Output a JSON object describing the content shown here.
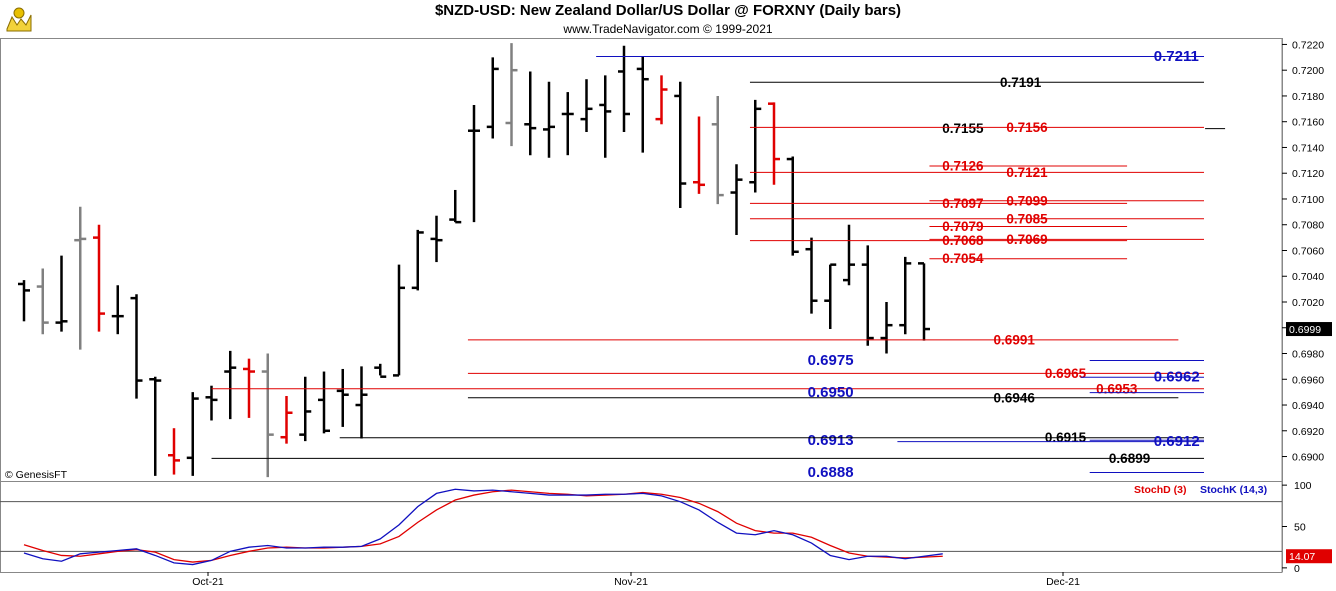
{
  "header": {
    "title": "$NZD-USD:  New Zealand Dollar/US Dollar @ FORXNY  (Daily bars)",
    "subtitle": "www.TradeNavigator.com © 1999-2021",
    "logo_icon": "trade-navigator-logo-icon"
  },
  "chart_data": [
    {
      "type": "ohlc",
      "ylim": [
        0.6881,
        0.7225
      ],
      "y_ticks": [
        "0.7220",
        "0.7200",
        "0.7180",
        "0.7160",
        "0.7140",
        "0.7120",
        "0.7100",
        "0.7080",
        "0.7060",
        "0.7040",
        "0.7020",
        "0.7000",
        "0.6980",
        "0.6960",
        "0.6940",
        "0.6920",
        "0.6900"
      ],
      "x_tick_labels": [
        "Oct-21",
        "Nov-21",
        "Dec-21"
      ],
      "last_price": "0.6999",
      "watermark": "© GenesisFT",
      "bars": [
        {
          "o": 0.7034,
          "h": 0.7037,
          "l": 0.7005,
          "c": 0.7029,
          "color": "black"
        },
        {
          "o": 0.7032,
          "h": 0.7046,
          "l": 0.6995,
          "c": 0.7004,
          "color": "gray"
        },
        {
          "o": 0.7004,
          "h": 0.7056,
          "l": 0.6997,
          "c": 0.7005,
          "color": "black"
        },
        {
          "o": 0.7068,
          "h": 0.7094,
          "l": 0.6983,
          "c": 0.7069,
          "color": "gray"
        },
        {
          "o": 0.707,
          "h": 0.708,
          "l": 0.6997,
          "c": 0.7011,
          "color": "red"
        },
        {
          "o": 0.7009,
          "h": 0.7033,
          "l": 0.6995,
          "c": 0.7009,
          "color": "black"
        },
        {
          "o": 0.7023,
          "h": 0.7026,
          "l": 0.6945,
          "c": 0.6959,
          "color": "black"
        },
        {
          "o": 0.696,
          "h": 0.6962,
          "l": 0.6885,
          "c": 0.6959,
          "color": "black"
        },
        {
          "o": 0.6901,
          "h": 0.6922,
          "l": 0.6886,
          "c": 0.6897,
          "color": "red"
        },
        {
          "o": 0.6899,
          "h": 0.695,
          "l": 0.6885,
          "c": 0.6945,
          "color": "black"
        },
        {
          "o": 0.6946,
          "h": 0.6955,
          "l": 0.6928,
          "c": 0.6944,
          "color": "black"
        },
        {
          "o": 0.6966,
          "h": 0.6982,
          "l": 0.6929,
          "c": 0.6969,
          "color": "black"
        },
        {
          "o": 0.6968,
          "h": 0.6976,
          "l": 0.693,
          "c": 0.6966,
          "color": "red"
        },
        {
          "o": 0.6966,
          "h": 0.698,
          "l": 0.6884,
          "c": 0.6917,
          "color": "gray"
        },
        {
          "o": 0.6915,
          "h": 0.6947,
          "l": 0.691,
          "c": 0.6934,
          "color": "red"
        },
        {
          "o": 0.6917,
          "h": 0.6962,
          "l": 0.6912,
          "c": 0.6935,
          "color": "black"
        },
        {
          "o": 0.6944,
          "h": 0.6966,
          "l": 0.6918,
          "c": 0.692,
          "color": "black"
        },
        {
          "o": 0.6951,
          "h": 0.6968,
          "l": 0.6923,
          "c": 0.6948,
          "color": "black"
        },
        {
          "o": 0.694,
          "h": 0.697,
          "l": 0.6914,
          "c": 0.6948,
          "color": "black"
        },
        {
          "o": 0.6969,
          "h": 0.6972,
          "l": 0.6963,
          "c": 0.6962,
          "color": "black"
        },
        {
          "o": 0.6963,
          "h": 0.7049,
          "l": 0.6963,
          "c": 0.7031,
          "color": "black"
        },
        {
          "o": 0.7031,
          "h": 0.7076,
          "l": 0.7029,
          "c": 0.7074,
          "color": "black"
        },
        {
          "o": 0.7069,
          "h": 0.7087,
          "l": 0.7051,
          "c": 0.7068,
          "color": "black"
        },
        {
          "o": 0.7084,
          "h": 0.7107,
          "l": 0.7082,
          "c": 0.7082,
          "color": "black"
        },
        {
          "o": 0.7153,
          "h": 0.7173,
          "l": 0.7082,
          "c": 0.7153,
          "color": "black"
        },
        {
          "o": 0.7156,
          "h": 0.721,
          "l": 0.7147,
          "c": 0.7201,
          "color": "black"
        },
        {
          "o": 0.7159,
          "h": 0.7221,
          "l": 0.7141,
          "c": 0.72,
          "color": "gray"
        },
        {
          "o": 0.7158,
          "h": 0.7199,
          "l": 0.7134,
          "c": 0.7155,
          "color": "black"
        },
        {
          "o": 0.7154,
          "h": 0.7191,
          "l": 0.7132,
          "c": 0.7156,
          "color": "black"
        },
        {
          "o": 0.7166,
          "h": 0.7183,
          "l": 0.7134,
          "c": 0.7166,
          "color": "black"
        },
        {
          "o": 0.7162,
          "h": 0.7193,
          "l": 0.7152,
          "c": 0.717,
          "color": "black"
        },
        {
          "o": 0.7173,
          "h": 0.7196,
          "l": 0.7132,
          "c": 0.7168,
          "color": "black"
        },
        {
          "o": 0.7199,
          "h": 0.7219,
          "l": 0.7152,
          "c": 0.7166,
          "color": "black"
        },
        {
          "o": 0.7201,
          "h": 0.7211,
          "l": 0.7136,
          "c": 0.7193,
          "color": "black"
        },
        {
          "o": 0.7162,
          "h": 0.7196,
          "l": 0.7158,
          "c": 0.7185,
          "color": "red"
        },
        {
          "o": 0.718,
          "h": 0.7191,
          "l": 0.7093,
          "c": 0.7112,
          "color": "black"
        },
        {
          "o": 0.7113,
          "h": 0.7164,
          "l": 0.7104,
          "c": 0.7111,
          "color": "red"
        },
        {
          "o": 0.7158,
          "h": 0.718,
          "l": 0.7096,
          "c": 0.7103,
          "color": "gray"
        },
        {
          "o": 0.7105,
          "h": 0.7127,
          "l": 0.7072,
          "c": 0.7115,
          "color": "black"
        },
        {
          "o": 0.7113,
          "h": 0.7177,
          "l": 0.7105,
          "c": 0.717,
          "color": "black"
        },
        {
          "o": 0.7174,
          "h": 0.7175,
          "l": 0.7111,
          "c": 0.7131,
          "color": "red"
        },
        {
          "o": 0.7131,
          "h": 0.7133,
          "l": 0.7056,
          "c": 0.7059,
          "color": "black"
        },
        {
          "o": 0.7061,
          "h": 0.707,
          "l": 0.7011,
          "c": 0.7021,
          "color": "black"
        },
        {
          "o": 0.7021,
          "h": 0.7049,
          "l": 0.6999,
          "c": 0.7049,
          "color": "black"
        },
        {
          "o": 0.7037,
          "h": 0.708,
          "l": 0.7033,
          "c": 0.7049,
          "color": "black"
        },
        {
          "o": 0.7049,
          "h": 0.7064,
          "l": 0.6986,
          "c": 0.6992,
          "color": "black"
        },
        {
          "o": 0.6992,
          "h": 0.702,
          "l": 0.698,
          "c": 0.7002,
          "color": "black"
        },
        {
          "o": 0.7002,
          "h": 0.7055,
          "l": 0.6995,
          "c": 0.705,
          "color": "black"
        },
        {
          "o": 0.705,
          "h": 0.705,
          "l": 0.699,
          "c": 0.6999,
          "color": "black"
        }
      ],
      "level_lines": [
        {
          "value": 0.7211,
          "label": "0.7211",
          "color": "#1010c0",
          "x0": 0.465,
          "x1": 1.0,
          "lx": 0.9,
          "size": "big"
        },
        {
          "value": 0.7191,
          "label": "0.7191",
          "color": "#000000",
          "x0": 0.585,
          "x1": 1.0,
          "lx": 0.78,
          "size": "small"
        },
        {
          "value": 0.7155,
          "label": "0.7155",
          "color": "#000000",
          "x0": 0.94,
          "x1": 1.0,
          "lx": 0.735,
          "size": "small"
        },
        {
          "value": 0.7156,
          "label": "0.7156",
          "color": "#e00000",
          "x0": 0.585,
          "x1": 1.0,
          "lx": 0.785,
          "size": "small"
        },
        {
          "value": 0.7126,
          "label": "0.7126",
          "color": "#e00000",
          "x0": 0.725,
          "x1": 0.94,
          "lx": 0.735,
          "size": "small"
        },
        {
          "value": 0.7121,
          "label": "0.7121",
          "color": "#e00000",
          "x0": 0.585,
          "x1": 1.0,
          "lx": 0.785,
          "size": "small"
        },
        {
          "value": 0.7097,
          "label": "0.7097",
          "color": "#e00000",
          "x0": 0.585,
          "x1": 0.94,
          "lx": 0.735,
          "size": "small"
        },
        {
          "value": 0.7099,
          "label": "0.7099",
          "color": "#e00000",
          "x0": 0.725,
          "x1": 1.0,
          "lx": 0.785,
          "size": "small"
        },
        {
          "value": 0.7079,
          "label": "0.7079",
          "color": "#e00000",
          "x0": 0.725,
          "x1": 0.94,
          "lx": 0.735,
          "size": "small"
        },
        {
          "value": 0.7085,
          "label": "0.7085",
          "color": "#e00000",
          "x0": 0.585,
          "x1": 1.0,
          "lx": 0.785,
          "size": "small"
        },
        {
          "value": 0.7068,
          "label": "0.7068",
          "color": "#e00000",
          "x0": 0.585,
          "x1": 0.94,
          "lx": 0.735,
          "size": "small"
        },
        {
          "value": 0.7069,
          "label": "0.7069",
          "color": "#e00000",
          "x0": 0.725,
          "x1": 1.0,
          "lx": 0.785,
          "size": "small"
        },
        {
          "value": 0.7054,
          "label": "0.7054",
          "color": "#e00000",
          "x0": 0.725,
          "x1": 0.94,
          "lx": 0.735,
          "size": "small"
        },
        {
          "value": 0.6991,
          "label": "0.6991",
          "color": "#e00000",
          "x0": 0.365,
          "x1": 0.98,
          "lx": 0.775,
          "size": "small"
        },
        {
          "value": 0.6975,
          "label": "0.6975",
          "color": "#1010c0",
          "x0": 0.85,
          "x1": 1.0,
          "lx": 0.63,
          "size": "big"
        },
        {
          "value": 0.6965,
          "label": "0.6965",
          "color": "#e00000",
          "x0": 0.365,
          "x1": 1.0,
          "lx": 0.815,
          "size": "small"
        },
        {
          "value": 0.6962,
          "label": "0.6962",
          "color": "#1010c0",
          "x0": 0.843,
          "x1": 1.0,
          "lx": 0.9,
          "size": "big"
        },
        {
          "value": 0.6953,
          "label": "0.6953",
          "color": "#e00000",
          "x0": 0.165,
          "x1": 1.0,
          "lx": 0.855,
          "size": "small"
        },
        {
          "value": 0.695,
          "label": "0.6950",
          "color": "#1010c0",
          "x0": 0.85,
          "x1": 1.0,
          "lx": 0.63,
          "size": "big"
        },
        {
          "value": 0.6946,
          "label": "0.6946",
          "color": "#000000",
          "x0": 0.365,
          "x1": 0.98,
          "lx": 0.775,
          "size": "small"
        },
        {
          "value": 0.6913,
          "label": "0.6913",
          "color": "#1010c0",
          "x0": 0.85,
          "x1": 1.0,
          "lx": 0.63,
          "size": "big"
        },
        {
          "value": 0.6915,
          "label": "0.6915",
          "color": "#000000",
          "x0": 0.265,
          "x1": 1.0,
          "lx": 0.815,
          "size": "small"
        },
        {
          "value": 0.6912,
          "label": "0.6912",
          "color": "#1010c0",
          "x0": 0.7,
          "x1": 1.0,
          "lx": 0.9,
          "size": "big"
        },
        {
          "value": 0.6899,
          "label": "0.6899",
          "color": "#000000",
          "x0": 0.165,
          "x1": 1.0,
          "lx": 0.865,
          "size": "small"
        },
        {
          "value": 0.6888,
          "label": "0.6888",
          "color": "#1010c0",
          "x0": 0.85,
          "x1": 1.0,
          "lx": 0.63,
          "size": "big"
        }
      ]
    },
    {
      "type": "line",
      "ylim": [
        -5,
        105
      ],
      "y_ticks": [
        "100",
        "50",
        "0"
      ],
      "reference_lines": [
        80,
        20
      ],
      "current_value": "14.07",
      "series": [
        {
          "name": "StochD (3)",
          "color": "#e00000",
          "values": [
            28,
            21,
            15,
            14,
            17,
            20,
            22,
            19,
            10,
            7,
            9,
            15,
            20,
            24,
            25,
            24,
            24,
            25,
            26,
            29,
            38,
            55,
            70,
            82,
            88,
            92,
            94,
            92,
            90,
            89,
            87,
            88,
            89,
            91,
            89,
            85,
            78,
            68,
            54,
            45,
            42,
            42,
            37,
            27,
            18,
            14,
            13,
            12,
            13,
            14
          ]
        },
        {
          "name": "StochK (14,3)",
          "color": "#1010c0",
          "values": [
            18,
            11,
            8,
            17,
            19,
            21,
            23,
            15,
            6,
            4,
            9,
            20,
            25,
            27,
            24,
            24,
            25,
            25,
            26,
            35,
            52,
            74,
            90,
            95,
            93,
            94,
            92,
            90,
            88,
            88,
            88,
            89,
            89,
            90,
            87,
            80,
            70,
            55,
            42,
            40,
            45,
            40,
            30,
            15,
            10,
            14,
            14,
            11,
            14,
            17
          ]
        }
      ]
    }
  ]
}
